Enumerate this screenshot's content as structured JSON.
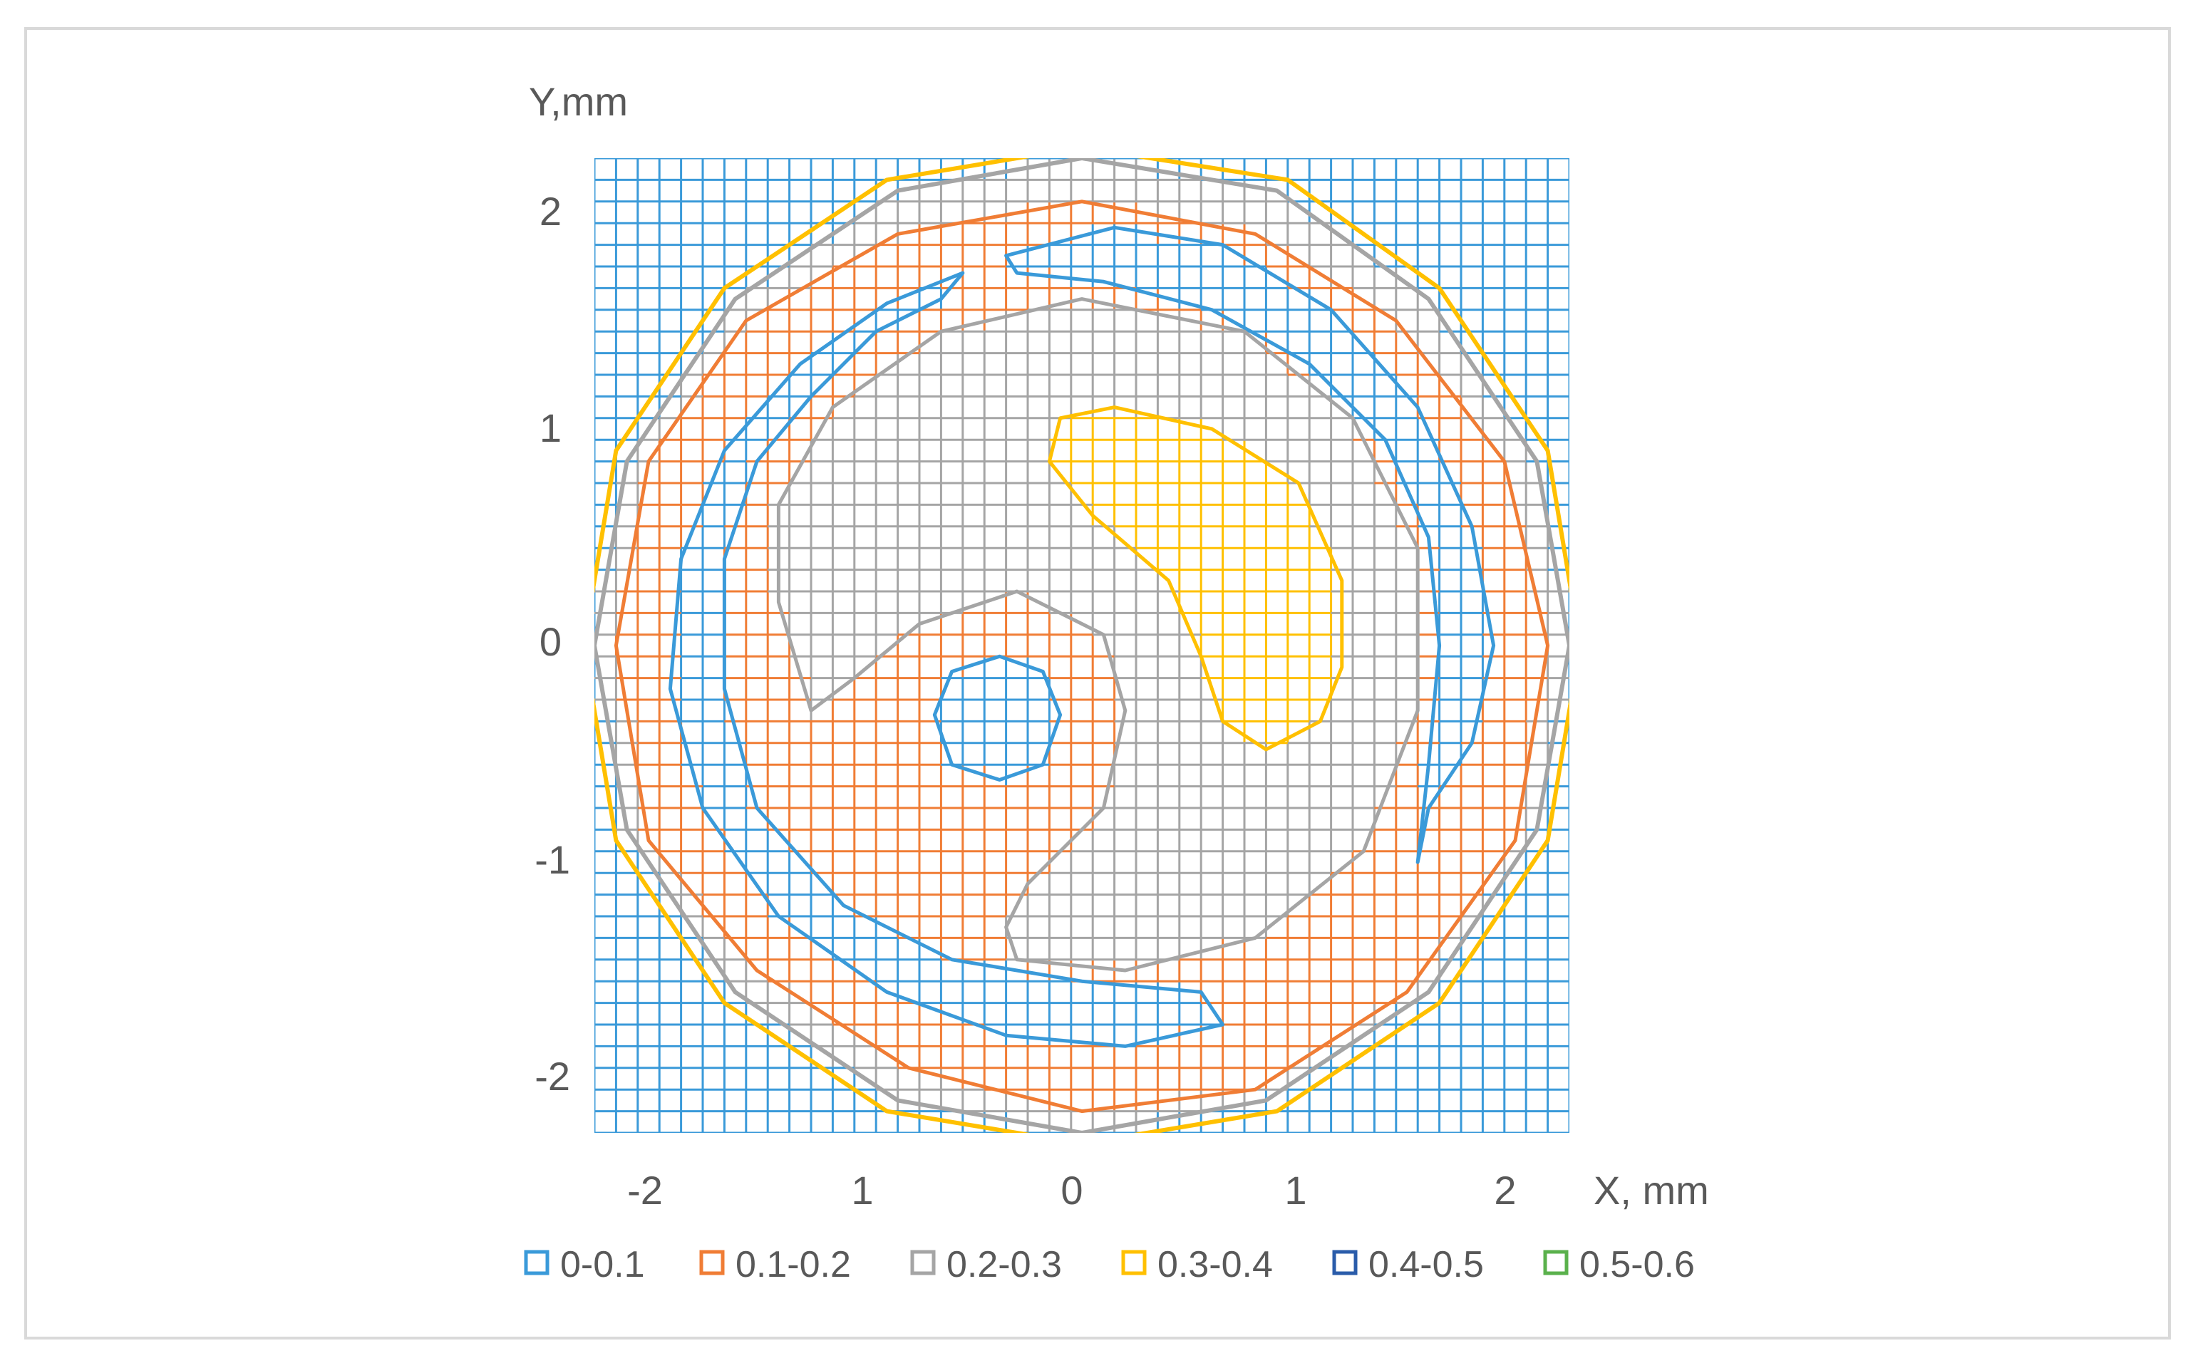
{
  "chart_data": {
    "type": "contour",
    "title": "",
    "xlabel": "X, mm",
    "ylabel": "Y,mm",
    "x_tick_labels": [
      "-2",
      "1",
      "0",
      "1",
      "2"
    ],
    "y_tick_labels": [
      "2",
      "1",
      "0",
      "-1",
      "-2"
    ],
    "xlim": [
      -2.25,
      2.25
    ],
    "ylim": [
      -2.25,
      2.25
    ],
    "grid": "on",
    "legend_position": "bottom",
    "legend": [
      {
        "label": "0-0.1",
        "color": "#3a9ad9"
      },
      {
        "label": "0.1-0.2",
        "color": "#f07d35"
      },
      {
        "label": "0.2-0.3",
        "color": "#a5a5a5"
      },
      {
        "label": "0.3-0.4",
        "color": "#ffc000"
      },
      {
        "label": "0.4-0.5",
        "color": "#2a5caa"
      },
      {
        "label": "0.5-0.6",
        "color": "#5ab14c"
      }
    ],
    "regions": [
      {
        "level": "0.2-0.3",
        "color": "#a5a5a5",
        "points": [
          [
            -2.3,
            -2.3
          ],
          [
            2.3,
            -2.3
          ],
          [
            2.3,
            2.3
          ],
          [
            -2.3,
            2.3
          ]
        ]
      },
      {
        "level": "0.1-0.2",
        "color": "#f07d35",
        "points": [
          [
            0.0,
            2.05
          ],
          [
            0.8,
            1.9
          ],
          [
            1.45,
            1.5
          ],
          [
            1.95,
            0.85
          ],
          [
            2.15,
            0.0
          ],
          [
            2.0,
            -0.9
          ],
          [
            1.5,
            -1.6
          ],
          [
            0.8,
            -2.05
          ],
          [
            0.0,
            -2.15
          ],
          [
            -0.8,
            -1.95
          ],
          [
            -1.5,
            -1.5
          ],
          [
            -2.0,
            -0.9
          ],
          [
            -2.15,
            0.0
          ],
          [
            -2.0,
            0.85
          ],
          [
            -1.55,
            1.5
          ],
          [
            -0.85,
            1.9
          ]
        ]
      },
      {
        "level": "0-0.1",
        "color": "#3a9ad9",
        "points": [
          [
            -0.55,
            1.72
          ],
          [
            -0.9,
            1.58
          ],
          [
            -1.3,
            1.3
          ],
          [
            -1.65,
            0.9
          ],
          [
            -1.85,
            0.4
          ],
          [
            -1.9,
            -0.2
          ],
          [
            -1.75,
            -0.75
          ],
          [
            -1.4,
            -1.25
          ],
          [
            -0.9,
            -1.6
          ],
          [
            -0.35,
            -1.8
          ],
          [
            0.2,
            -1.85
          ],
          [
            0.65,
            -1.75
          ],
          [
            0.55,
            -1.6
          ],
          [
            0.0,
            -1.55
          ],
          [
            -0.6,
            -1.45
          ],
          [
            -1.1,
            -1.2
          ],
          [
            -1.5,
            -0.75
          ],
          [
            -1.65,
            -0.2
          ],
          [
            -1.65,
            0.4
          ],
          [
            -1.5,
            0.85
          ],
          [
            -1.25,
            1.15
          ],
          [
            -0.95,
            1.45
          ],
          [
            -0.65,
            1.6
          ]
        ]
      },
      {
        "level": "0-0.1",
        "color": "#3a9ad9",
        "points": [
          [
            -0.35,
            1.8
          ],
          [
            0.15,
            1.93
          ],
          [
            0.65,
            1.85
          ],
          [
            1.15,
            1.55
          ],
          [
            1.55,
            1.1
          ],
          [
            1.8,
            0.55
          ],
          [
            1.9,
            0.0
          ],
          [
            1.8,
            -0.45
          ],
          [
            1.6,
            -0.75
          ],
          [
            1.55,
            -1.0
          ],
          [
            1.6,
            -0.55
          ],
          [
            1.65,
            0.0
          ],
          [
            1.6,
            0.5
          ],
          [
            1.4,
            0.95
          ],
          [
            1.05,
            1.3
          ],
          [
            0.6,
            1.55
          ],
          [
            0.1,
            1.68
          ],
          [
            -0.3,
            1.72
          ]
        ]
      },
      {
        "level": "0.2-0.3",
        "color": "#a5a5a5",
        "points": [
          [
            0.0,
            1.6
          ],
          [
            0.75,
            1.45
          ],
          [
            1.25,
            1.05
          ],
          [
            1.55,
            0.45
          ],
          [
            1.55,
            -0.3
          ],
          [
            1.3,
            -0.95
          ],
          [
            0.8,
            -1.35
          ],
          [
            0.2,
            -1.5
          ],
          [
            -0.3,
            -1.45
          ],
          [
            -0.35,
            -1.3
          ],
          [
            -0.25,
            -1.1
          ],
          [
            0.1,
            -0.75
          ],
          [
            0.2,
            -0.3
          ],
          [
            0.1,
            0.05
          ],
          [
            -0.3,
            0.25
          ],
          [
            -0.75,
            0.1
          ],
          [
            -1.05,
            -0.15
          ],
          [
            -1.25,
            -0.3
          ],
          [
            -1.4,
            0.2
          ],
          [
            -1.4,
            0.65
          ],
          [
            -1.15,
            1.1
          ],
          [
            -0.65,
            1.45
          ]
        ]
      },
      {
        "level": "0.3-0.4",
        "color": "#ffc000",
        "points": [
          [
            0.15,
            1.1
          ],
          [
            0.6,
            1.0
          ],
          [
            1.0,
            0.75
          ],
          [
            1.2,
            0.3
          ],
          [
            1.2,
            -0.1
          ],
          [
            1.1,
            -0.35
          ],
          [
            0.85,
            -0.48
          ],
          [
            0.65,
            -0.35
          ],
          [
            0.55,
            -0.05
          ],
          [
            0.4,
            0.3
          ],
          [
            0.05,
            0.6
          ],
          [
            -0.15,
            0.85
          ],
          [
            -0.1,
            1.05
          ]
        ]
      },
      {
        "level": "0-0.1",
        "color": "#3a9ad9",
        "points": [
          [
            -0.38,
            -0.05
          ],
          [
            -0.18,
            -0.12
          ],
          [
            -0.1,
            -0.32
          ],
          [
            -0.18,
            -0.55
          ],
          [
            -0.38,
            -0.62
          ],
          [
            -0.6,
            -0.55
          ],
          [
            -0.68,
            -0.32
          ],
          [
            -0.6,
            -0.12
          ]
        ]
      }
    ],
    "rings": [
      {
        "level": "0.2-0.3",
        "color": "#a5a5a5",
        "points": [
          [
            0.0,
            2.25
          ],
          [
            0.9,
            2.1
          ],
          [
            1.6,
            1.6
          ],
          [
            2.1,
            0.85
          ],
          [
            2.25,
            0.0
          ],
          [
            2.1,
            -0.85
          ],
          [
            1.6,
            -1.6
          ],
          [
            0.85,
            -2.1
          ],
          [
            0.0,
            -2.25
          ],
          [
            -0.85,
            -2.1
          ],
          [
            -1.6,
            -1.6
          ],
          [
            -2.1,
            -0.85
          ],
          [
            -2.25,
            0.0
          ],
          [
            -2.1,
            0.85
          ],
          [
            -1.6,
            1.6
          ],
          [
            -0.85,
            2.1
          ]
        ]
      },
      {
        "level": "0.3-0.4",
        "color": "#ffc000",
        "points": [
          [
            0.0,
            2.3
          ],
          [
            0.95,
            2.15
          ],
          [
            1.65,
            1.65
          ],
          [
            2.15,
            0.9
          ],
          [
            2.3,
            0.0
          ],
          [
            2.15,
            -0.9
          ],
          [
            1.65,
            -1.65
          ],
          [
            0.9,
            -2.15
          ],
          [
            0.0,
            -2.3
          ],
          [
            -0.9,
            -2.15
          ],
          [
            -1.65,
            -1.65
          ],
          [
            -2.15,
            -0.9
          ],
          [
            -2.3,
            0.0
          ],
          [
            -2.15,
            0.9
          ],
          [
            -1.65,
            1.65
          ],
          [
            -0.9,
            2.15
          ]
        ]
      }
    ]
  }
}
